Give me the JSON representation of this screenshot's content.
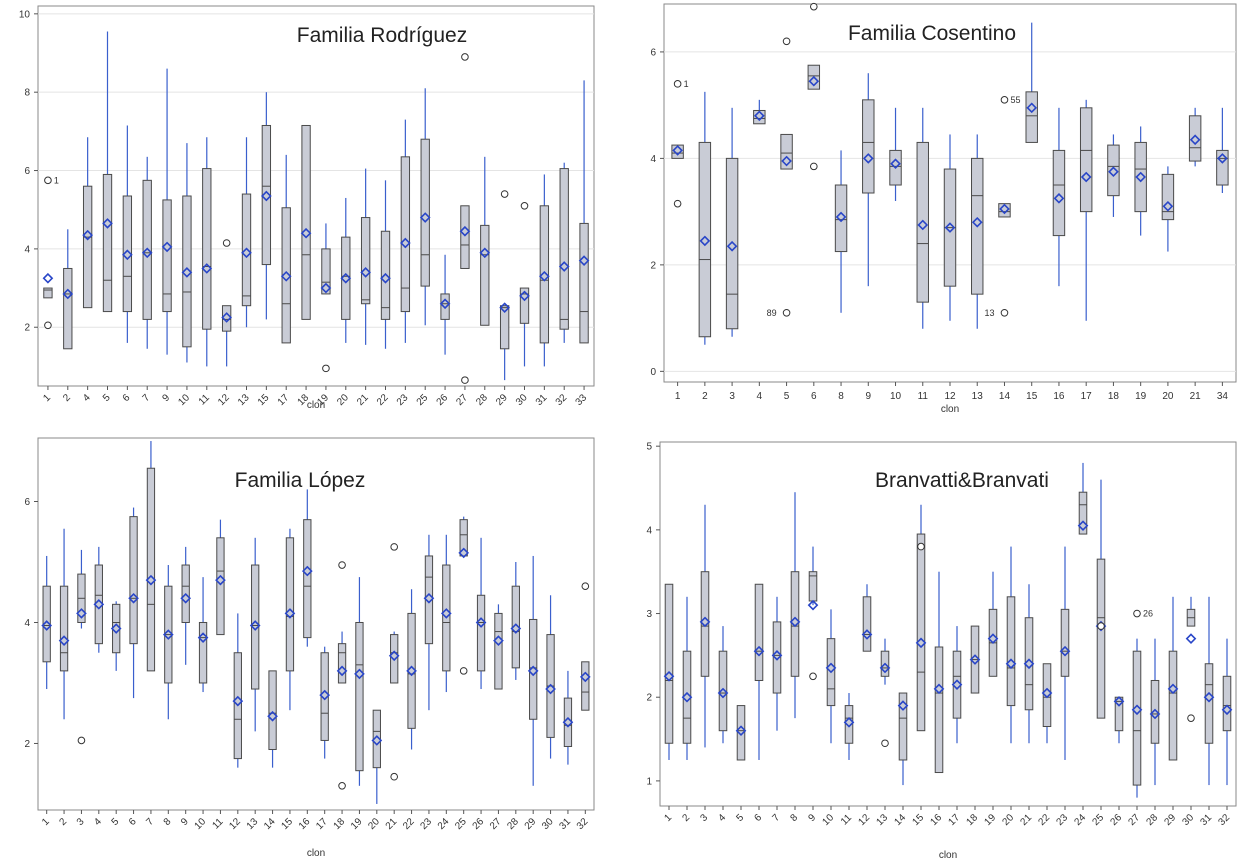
{
  "chart_data": [
    {
      "type": "box",
      "title": "Familia Rodríguez",
      "xlabel": "clon",
      "ylabel": "",
      "ylim": [
        0.5,
        10.2
      ],
      "yticks": [
        2,
        4,
        6,
        8,
        10
      ],
      "grid": true,
      "categories": [
        "1",
        "2",
        "4",
        "5",
        "6",
        "7",
        "9",
        "10",
        "11",
        "12",
        "13",
        "15",
        "17",
        "18",
        "19",
        "20",
        "21",
        "22",
        "23",
        "25",
        "26",
        "27",
        "28",
        "29",
        "30",
        "31",
        "32",
        "33"
      ],
      "q1": [
        2.75,
        1.45,
        2.5,
        2.4,
        2.4,
        2.2,
        2.4,
        1.5,
        1.95,
        1.9,
        2.55,
        3.6,
        1.6,
        2.2,
        2.85,
        2.2,
        2.6,
        2.2,
        2.4,
        3.05,
        2.2,
        3.5,
        2.05,
        1.45,
        2.1,
        1.6,
        1.95,
        1.6
      ],
      "median": [
        2.95,
        2.85,
        4.3,
        3.2,
        3.3,
        3.9,
        2.85,
        2.9,
        3.55,
        2.2,
        2.8,
        5.6,
        2.6,
        3.85,
        3.15,
        3.3,
        2.7,
        2.5,
        3.0,
        3.85,
        2.6,
        4.1,
        3.85,
        2.5,
        2.85,
        3.2,
        2.2,
        2.4
      ],
      "q3": [
        3.0,
        3.5,
        5.6,
        5.9,
        5.35,
        5.75,
        5.25,
        5.35,
        6.05,
        2.55,
        5.4,
        7.15,
        5.05,
        7.15,
        4.0,
        4.3,
        4.8,
        4.45,
        6.35,
        6.8,
        2.85,
        5.1,
        4.6,
        2.55,
        3.0,
        5.1,
        6.05,
        4.65
      ],
      "whisker_low": [
        2.75,
        1.45,
        2.5,
        2.4,
        1.6,
        1.45,
        1.3,
        1.1,
        1.0,
        1.0,
        2.0,
        2.2,
        1.6,
        2.2,
        2.85,
        1.6,
        1.55,
        1.45,
        1.6,
        2.05,
        1.3,
        3.5,
        2.05,
        0.65,
        1.0,
        1.0,
        1.6,
        1.6
      ],
      "whisker_high": [
        3.0,
        4.5,
        6.85,
        9.55,
        7.15,
        6.35,
        8.6,
        6.7,
        6.85,
        2.55,
        6.85,
        8.0,
        6.4,
        7.15,
        4.65,
        5.3,
        6.05,
        5.75,
        7.3,
        8.1,
        3.85,
        5.1,
        6.35,
        2.55,
        3.0,
        5.9,
        6.2,
        8.3
      ],
      "mean": [
        3.25,
        2.85,
        4.35,
        4.65,
        3.85,
        3.9,
        4.05,
        3.4,
        3.5,
        2.25,
        3.9,
        5.35,
        3.3,
        4.4,
        3.0,
        3.25,
        3.4,
        3.25,
        4.15,
        4.8,
        2.6,
        4.45,
        3.9,
        2.5,
        2.8,
        3.3,
        3.55,
        3.7
      ],
      "outliers": [
        {
          "category": "1",
          "value": 5.75,
          "label": "1"
        },
        {
          "category": "1",
          "value": 2.05,
          "label": ""
        },
        {
          "category": "12",
          "value": 4.15,
          "label": ""
        },
        {
          "category": "19",
          "value": 0.95,
          "label": ""
        },
        {
          "category": "27",
          "value": 8.9,
          "label": ""
        },
        {
          "category": "27",
          "value": 0.65,
          "label": ""
        },
        {
          "category": "29",
          "value": 5.4,
          "label": ""
        },
        {
          "category": "30",
          "value": 5.1,
          "label": ""
        }
      ]
    },
    {
      "type": "box",
      "title": "Familia Cosentino",
      "xlabel": "clon",
      "ylabel": "",
      "ylim": [
        -0.2,
        6.9
      ],
      "yticks": [
        0,
        2,
        4,
        6
      ],
      "grid": true,
      "categories": [
        "1",
        "2",
        "3",
        "4",
        "5",
        "6",
        "8",
        "9",
        "10",
        "11",
        "12",
        "13",
        "14",
        "15",
        "16",
        "17",
        "18",
        "19",
        "20",
        "21",
        "34"
      ],
      "q1": [
        4.0,
        0.65,
        0.8,
        4.65,
        3.8,
        5.3,
        2.25,
        3.35,
        3.5,
        1.3,
        1.6,
        1.45,
        2.9,
        4.3,
        2.55,
        3.0,
        3.3,
        3.0,
        2.85,
        3.95,
        3.5
      ],
      "median": [
        4.1,
        2.1,
        1.45,
        4.75,
        4.1,
        5.55,
        2.85,
        4.3,
        3.85,
        2.4,
        2.7,
        3.3,
        3.0,
        4.8,
        3.5,
        4.15,
        3.85,
        3.8,
        3.0,
        4.2,
        4.0
      ],
      "q3": [
        4.25,
        4.3,
        4.0,
        4.9,
        4.45,
        5.75,
        3.5,
        5.1,
        4.15,
        4.3,
        3.8,
        4.0,
        3.15,
        5.25,
        4.15,
        4.95,
        4.25,
        4.3,
        3.7,
        4.8,
        4.15
      ],
      "whisker_low": [
        4.0,
        0.5,
        0.65,
        4.65,
        3.8,
        5.3,
        1.1,
        1.6,
        3.2,
        0.8,
        0.95,
        0.8,
        2.9,
        4.3,
        1.6,
        0.95,
        2.9,
        2.55,
        2.25,
        3.85,
        3.35
      ],
      "whisker_high": [
        4.25,
        5.25,
        4.95,
        5.1,
        4.45,
        5.75,
        4.15,
        5.6,
        4.95,
        4.95,
        4.45,
        4.45,
        3.15,
        6.55,
        4.95,
        5.1,
        4.45,
        4.6,
        3.85,
        4.95,
        4.95
      ],
      "mean": [
        4.15,
        2.45,
        2.35,
        4.8,
        3.95,
        5.45,
        2.9,
        4.0,
        3.9,
        2.75,
        2.7,
        2.8,
        3.05,
        4.95,
        3.25,
        3.65,
        3.75,
        3.65,
        3.1,
        4.35,
        4.0
      ],
      "outliers": [
        {
          "category": "1",
          "value": 5.4,
          "label": "1"
        },
        {
          "category": "1",
          "value": 3.15,
          "label": ""
        },
        {
          "category": "5",
          "value": 6.2,
          "label": ""
        },
        {
          "category": "5",
          "value": 1.1,
          "label": "89"
        },
        {
          "category": "6",
          "value": 6.85,
          "label": ""
        },
        {
          "category": "6",
          "value": 3.85,
          "label": ""
        },
        {
          "category": "14",
          "value": 5.1,
          "label": "55"
        },
        {
          "category": "14",
          "value": 1.1,
          "label": "13"
        }
      ]
    },
    {
      "type": "box",
      "title": "Familia López",
      "xlabel": "clon",
      "ylabel": "",
      "ylim": [
        0.9,
        7.05
      ],
      "yticks": [
        2,
        4,
        6
      ],
      "grid": false,
      "categories": [
        "1",
        "2",
        "3",
        "4",
        "5",
        "6",
        "7",
        "8",
        "9",
        "10",
        "11",
        "12",
        "13",
        "14",
        "15",
        "16",
        "17",
        "18",
        "19",
        "20",
        "21",
        "22",
        "23",
        "24",
        "25",
        "26",
        "27",
        "28",
        "29",
        "30",
        "31",
        "32"
      ],
      "q1": [
        3.35,
        3.2,
        4.0,
        3.65,
        3.5,
        3.65,
        3.2,
        3.0,
        4.0,
        3.0,
        3.8,
        1.75,
        2.9,
        1.9,
        3.2,
        3.75,
        2.05,
        3.0,
        1.55,
        1.6,
        3.0,
        2.25,
        3.65,
        3.2,
        5.1,
        3.2,
        2.9,
        3.25,
        2.4,
        2.1,
        1.95,
        2.55
      ],
      "median": [
        3.95,
        3.5,
        4.4,
        4.45,
        4.0,
        4.4,
        4.3,
        3.8,
        4.6,
        3.75,
        4.85,
        2.4,
        3.95,
        2.5,
        4.1,
        4.6,
        2.5,
        3.5,
        3.3,
        2.2,
        3.5,
        3.15,
        4.75,
        4.0,
        5.45,
        4.0,
        3.85,
        3.85,
        3.25,
        2.95,
        2.3,
        2.85
      ],
      "q3": [
        4.6,
        4.6,
        4.8,
        4.95,
        4.3,
        5.75,
        6.55,
        4.6,
        4.95,
        4.0,
        5.4,
        3.5,
        4.95,
        3.2,
        5.4,
        5.7,
        3.5,
        3.65,
        4.0,
        2.55,
        3.8,
        4.15,
        5.1,
        4.95,
        5.7,
        4.45,
        4.15,
        4.6,
        4.05,
        3.8,
        2.75,
        3.35
      ],
      "whisker_low": [
        2.9,
        2.4,
        3.9,
        3.5,
        3.2,
        2.75,
        3.2,
        2.4,
        3.3,
        2.85,
        3.8,
        1.6,
        2.2,
        1.6,
        2.55,
        3.6,
        1.75,
        3.0,
        1.3,
        1.0,
        3.0,
        1.9,
        2.55,
        2.85,
        5.1,
        2.9,
        2.9,
        3.05,
        1.3,
        1.75,
        1.65,
        2.55
      ],
      "whisker_high": [
        5.1,
        5.55,
        5.2,
        5.25,
        4.35,
        5.9,
        7.0,
        4.95,
        5.25,
        4.75,
        5.7,
        4.15,
        5.4,
        3.2,
        5.55,
        6.2,
        3.6,
        3.85,
        4.75,
        2.55,
        3.85,
        4.55,
        5.45,
        5.45,
        5.75,
        5.4,
        4.3,
        5.0,
        5.1,
        4.45,
        3.2,
        3.35
      ],
      "mean": [
        3.95,
        3.7,
        4.15,
        4.3,
        3.9,
        4.4,
        4.7,
        3.8,
        4.4,
        3.75,
        4.7,
        2.7,
        3.95,
        2.45,
        4.15,
        4.85,
        2.8,
        3.2,
        3.15,
        2.05,
        3.45,
        3.2,
        4.4,
        4.15,
        5.15,
        4.0,
        3.7,
        3.9,
        3.2,
        2.9,
        2.35,
        3.1
      ],
      "outliers": [
        {
          "category": "3",
          "value": 2.05,
          "label": ""
        },
        {
          "category": "18",
          "value": 4.95,
          "label": ""
        },
        {
          "category": "18",
          "value": 1.3,
          "label": ""
        },
        {
          "category": "21",
          "value": 5.25,
          "label": ""
        },
        {
          "category": "21",
          "value": 1.45,
          "label": ""
        },
        {
          "category": "25",
          "value": 3.2,
          "label": ""
        },
        {
          "category": "32",
          "value": 4.6,
          "label": ""
        }
      ]
    },
    {
      "type": "box",
      "title": "Branvatti&Branvati",
      "xlabel": "clon",
      "ylabel": "",
      "ylim": [
        0.7,
        5.05
      ],
      "yticks": [
        1,
        2,
        3,
        4,
        5
      ],
      "grid": false,
      "categories": [
        "1",
        "2",
        "3",
        "4",
        "5",
        "6",
        "7",
        "8",
        "9",
        "10",
        "11",
        "12",
        "13",
        "14",
        "15",
        "16",
        "17",
        "18",
        "19",
        "20",
        "21",
        "22",
        "23",
        "24",
        "25",
        "26",
        "27",
        "28",
        "29",
        "30",
        "31",
        "32"
      ],
      "q1": [
        1.45,
        1.45,
        2.25,
        1.6,
        1.25,
        2.2,
        2.05,
        2.25,
        3.15,
        1.9,
        1.45,
        2.55,
        2.25,
        1.25,
        1.6,
        1.1,
        1.75,
        2.05,
        2.25,
        1.9,
        1.85,
        1.65,
        2.25,
        3.95,
        1.75,
        1.6,
        0.95,
        1.45,
        1.25,
        2.85,
        1.45,
        1.6
      ],
      "median": [
        2.2,
        1.75,
        2.85,
        2.05,
        1.6,
        2.55,
        2.5,
        2.85,
        3.45,
        2.1,
        1.75,
        2.75,
        2.35,
        1.75,
        2.3,
        2.05,
        2.25,
        2.45,
        2.65,
        2.35,
        2.15,
        2.0,
        2.55,
        4.3,
        2.95,
        1.95,
        1.6,
        1.8,
        2.05,
        2.95,
        2.15,
        1.9
      ],
      "q3": [
        3.35,
        2.55,
        3.5,
        2.55,
        1.9,
        3.35,
        2.9,
        3.5,
        3.5,
        2.7,
        1.9,
        3.2,
        2.55,
        2.05,
        3.95,
        2.6,
        2.55,
        2.85,
        3.05,
        3.2,
        2.95,
        2.4,
        3.05,
        4.45,
        3.65,
        2.0,
        2.55,
        2.2,
        2.55,
        3.05,
        2.4,
        2.25
      ],
      "whisker_low": [
        1.25,
        1.25,
        1.4,
        1.45,
        1.25,
        1.25,
        1.6,
        1.75,
        3.1,
        1.45,
        1.25,
        2.55,
        2.15,
        0.95,
        1.6,
        1.1,
        1.45,
        2.05,
        2.25,
        1.45,
        1.45,
        1.45,
        1.25,
        3.95,
        1.75,
        1.45,
        0.8,
        0.95,
        1.25,
        2.85,
        0.95,
        0.95
      ],
      "whisker_high": [
        3.35,
        3.2,
        4.3,
        2.85,
        1.9,
        3.35,
        3.2,
        4.45,
        3.8,
        3.05,
        2.05,
        3.35,
        2.7,
        2.05,
        4.3,
        3.5,
        2.85,
        2.85,
        3.5,
        3.8,
        3.35,
        2.4,
        3.8,
        4.8,
        4.6,
        2.0,
        2.7,
        2.7,
        3.2,
        3.2,
        3.2,
        2.7
      ],
      "mean": [
        2.25,
        2.0,
        2.9,
        2.05,
        1.6,
        2.55,
        2.5,
        2.9,
        3.1,
        2.35,
        1.7,
        2.75,
        2.35,
        1.9,
        2.65,
        2.1,
        2.15,
        2.45,
        2.7,
        2.4,
        2.4,
        2.05,
        2.55,
        4.05,
        2.85,
        1.95,
        1.85,
        1.8,
        2.1,
        2.7,
        2.0,
        1.85
      ],
      "outliers": [
        {
          "category": "9",
          "value": 2.25,
          "label": ""
        },
        {
          "category": "13",
          "value": 1.45,
          "label": ""
        },
        {
          "category": "15",
          "value": 3.8,
          "label": ""
        },
        {
          "category": "25",
          "value": 2.85,
          "label": ""
        },
        {
          "category": "27",
          "value": 3.0,
          "label": "26"
        },
        {
          "category": "30",
          "value": 1.75,
          "label": ""
        }
      ]
    }
  ]
}
